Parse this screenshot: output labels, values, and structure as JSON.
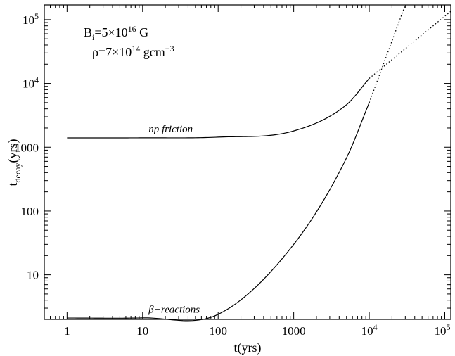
{
  "chart_data": {
    "type": "line",
    "xscale": "log",
    "yscale": "log",
    "xlim": [
      0.5,
      120000
    ],
    "ylim": [
      2,
      170000
    ],
    "grid": false,
    "legend": "none",
    "xlabel": "t(yrs)",
    "ylabel_main": "t",
    "ylabel_sub": "decay",
    "ylabel_rest": "(yrs)",
    "xticks": [
      {
        "value": 1,
        "label": "1"
      },
      {
        "value": 10,
        "label": "10"
      },
      {
        "value": 100,
        "label": "100"
      },
      {
        "value": 1000,
        "label": "1000"
      },
      {
        "value": 10000,
        "base": "10",
        "exp": "4"
      },
      {
        "value": 100000,
        "base": "10",
        "exp": "5"
      }
    ],
    "yticks": [
      {
        "value": 10,
        "label": "10"
      },
      {
        "value": 100,
        "label": "100"
      },
      {
        "value": 1000,
        "label": "1000"
      },
      {
        "value": 10000,
        "base": "10",
        "exp": "4"
      },
      {
        "value": 100000,
        "base": "10",
        "exp": "5"
      }
    ],
    "annotations": {
      "b_field": {
        "prefix": "B",
        "sub": "i",
        "mid": "=5×10",
        "sup": "16",
        "suffix": " G"
      },
      "density": {
        "prefix": "ρ=7×10",
        "sup": "14",
        "suffix": " gcm",
        "sup2": "−3"
      }
    },
    "series": [
      {
        "label": "np friction",
        "style": "solid",
        "color": "#000000",
        "points": [
          [
            1,
            1400
          ],
          [
            10,
            1404
          ],
          [
            100,
            1440
          ],
          [
            1000,
            1800
          ],
          [
            5000,
            4640
          ],
          [
            10000,
            12000
          ]
        ]
      },
      {
        "label": "np friction",
        "style": "dotted",
        "color": "#000000",
        "points": [
          [
            10000,
            12000
          ],
          [
            120000,
            135000
          ]
        ]
      },
      {
        "label": "β−reactions",
        "style": "solid",
        "color": "#000000",
        "points": [
          [
            1,
            2.1
          ],
          [
            10,
            2.11
          ],
          [
            100,
            2.4
          ],
          [
            1000,
            30
          ],
          [
            5000,
            680
          ],
          [
            10000,
            5000
          ]
        ]
      },
      {
        "label": "β−reactions",
        "style": "dotted",
        "color": "#000000",
        "points": [
          [
            10000,
            5000
          ],
          [
            30000,
            170000
          ]
        ]
      }
    ],
    "curve_labels": [
      {
        "text": "np friction",
        "x": 12,
        "y": 1550
      },
      {
        "text": "β−reactions",
        "x": 12,
        "y": 2.3
      }
    ]
  }
}
